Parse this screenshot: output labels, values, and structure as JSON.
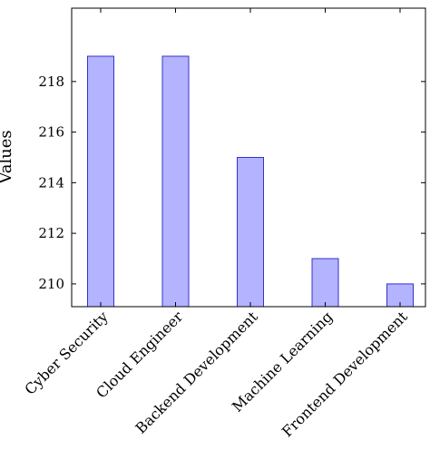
{
  "chart_data": {
    "type": "bar",
    "categories": [
      "Cyber Security",
      "Cloud Engineer",
      "Backend Development",
      "Machine Learning",
      "Frontend Development"
    ],
    "values": [
      219,
      219,
      215,
      211,
      210
    ],
    "ylabel": "Values",
    "xlabel": "",
    "ylim": [
      209.1,
      220.9
    ],
    "yticks": [
      210,
      212,
      214,
      216,
      218
    ],
    "grid": false,
    "bar_fill": "#b3b3ff",
    "bar_stroke": "#3333cc"
  }
}
